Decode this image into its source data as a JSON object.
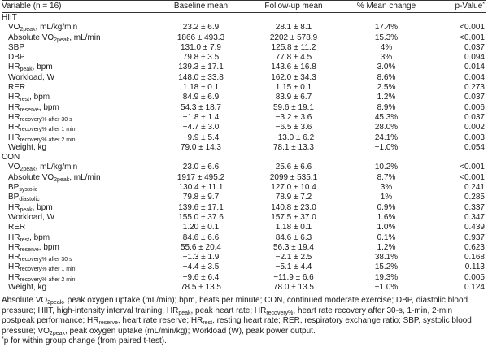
{
  "header": {
    "variable": "Variable (n = 16)",
    "baseline": "Baseline mean",
    "followup": "Follow-up mean",
    "change": "% Mean change",
    "pvalue": "p-Value",
    "pvalue_mark": "*"
  },
  "groups": [
    {
      "name": "HIIT",
      "rows": [
        {
          "label": "VO",
          "sub": "2peak",
          "suffix": ", mL/kg/min",
          "baseline": "23.2 ± 6.9",
          "followup": "28.1 ± 8.1",
          "change": "17.4%",
          "p": "<0.001"
        },
        {
          "label": "Absolute VO",
          "sub": "2peak",
          "suffix": ", mL/min",
          "baseline": "1866 ± 493.3",
          "followup": "2202 ± 578.9",
          "change": "15.3%",
          "p": "<0.001"
        },
        {
          "label": "SBP",
          "sub": "",
          "suffix": "",
          "baseline": "131.0 ± 7.9",
          "followup": "125.8 ± 11.2",
          "change": "4%",
          "p": "0.037"
        },
        {
          "label": "DBP",
          "sub": "",
          "suffix": "",
          "baseline": "79.8 ± 3.5",
          "followup": "77.8 ± 4.5",
          "change": "3%",
          "p": "0.094"
        },
        {
          "label": "HR",
          "sub": "peak",
          "suffix": ", bpm",
          "baseline": "139.3 ± 17.1",
          "followup": "143.6 ± 16.8",
          "change": "3.0%",
          "p": "0.014"
        },
        {
          "label": "Workload, W",
          "sub": "",
          "suffix": "",
          "baseline": "148.0 ± 33.8",
          "followup": "162.0 ± 34.3",
          "change": "8.6%",
          "p": "0.004"
        },
        {
          "label": "RER",
          "sub": "",
          "suffix": "",
          "baseline": "1.18 ± 0.1",
          "followup": "1.15 ± 0.1",
          "change": "2.5%",
          "p": "0.273"
        },
        {
          "label": "HR",
          "sub": "rest",
          "suffix": ", bpm",
          "baseline": "84.9 ± 6.9",
          "followup": "83.9 ± 6.7",
          "change": "1.2%",
          "p": "0.037"
        },
        {
          "label": "HR",
          "sub": "reserve",
          "suffix": ", bpm",
          "baseline": "54.3 ± 18.7",
          "followup": "59.6 ± 19.1",
          "change": "8.9%",
          "p": "0.006"
        },
        {
          "label": "HR",
          "sub": "recovery% after 30 s",
          "suffix": "",
          "baseline": "−1.8 ± 1.4",
          "followup": "−3.2 ± 3.6",
          "change": "45.3%",
          "p": "0.037"
        },
        {
          "label": "HR",
          "sub": "recovery% after 1 min",
          "suffix": "",
          "baseline": "−4.7 ± 3.0",
          "followup": "−6.5 ± 3.6",
          "change": "28.0%",
          "p": "0.002"
        },
        {
          "label": "HR",
          "sub": "recovery% after 2 min",
          "suffix": "",
          "baseline": "−9.9 ± 5.4",
          "followup": "−13.0 ± 6.2",
          "change": "24.1%",
          "p": "0.003"
        },
        {
          "label": "Weight, kg",
          "sub": "",
          "suffix": "",
          "baseline": "79.0 ± 14.3",
          "followup": "78.1 ± 13.3",
          "change": "−1.0%",
          "p": "0.054"
        }
      ]
    },
    {
      "name": "CON",
      "rows": [
        {
          "label": "VO",
          "sub": "2peak",
          "suffix": ", mL/kg/min",
          "baseline": "23.0 ± 6.6",
          "followup": "25.6 ± 6.6",
          "change": "10.2%",
          "p": "<0.001"
        },
        {
          "label": "Absolute VO",
          "sub": "2peak",
          "suffix": ", mL/min",
          "baseline": "1917 ± 495.2",
          "followup": "2099 ± 535.1",
          "change": "8.7%",
          "p": "<0.001"
        },
        {
          "label": "BP",
          "sub": "systolic",
          "suffix": "",
          "baseline": "130.4 ± 11.1",
          "followup": "127.0 ± 10.4",
          "change": "3%",
          "p": "0.241"
        },
        {
          "label": "BP",
          "sub": "diastolic",
          "suffix": "",
          "baseline": "79.8 ± 9.7",
          "followup": "78.9 ± 7.2",
          "change": "1%",
          "p": "0.285"
        },
        {
          "label": "HR",
          "sub": "peak",
          "suffix": ", bpm",
          "baseline": "139.6 ± 17.1",
          "followup": "140.8 ± 23.0",
          "change": "0.9%",
          "p": "0.337"
        },
        {
          "label": "Workload, W",
          "sub": "",
          "suffix": "",
          "baseline": "155.0 ± 37.6",
          "followup": "157.5 ± 37.0",
          "change": "1.6%",
          "p": "0.347"
        },
        {
          "label": "RER",
          "sub": "",
          "suffix": "",
          "baseline": "1.20 ± 0.1",
          "followup": "1.18 ± 0.1",
          "change": "1.0%",
          "p": "0.439"
        },
        {
          "label": "HR",
          "sub": "rest",
          "suffix": ", bpm",
          "baseline": "84.6 ± 6.6",
          "followup": "84.6 ± 6.3",
          "change": "0.1%",
          "p": "0.937"
        },
        {
          "label": "HR",
          "sub": "reserve",
          "suffix": ", bpm",
          "baseline": "55.6 ± 20.4",
          "followup": "56.3 ± 19.4",
          "change": "1.2%",
          "p": "0.623"
        },
        {
          "label": "HR",
          "sub": "recovery% after 30 s",
          "suffix": "",
          "baseline": "−1.3 ± 1.9",
          "followup": "−2.1 ± 2.5",
          "change": "38.1%",
          "p": "0.168"
        },
        {
          "label": "HR",
          "sub": "recovery% after 1 min",
          "suffix": "",
          "baseline": "−4.4 ± 3.5",
          "followup": "−5.1 ± 4.4",
          "change": "15.2%",
          "p": "0.113"
        },
        {
          "label": "HR",
          "sub": "recovery% after 2 min",
          "suffix": "",
          "baseline": "−9.6 ± 6.4",
          "followup": "−11.9 ± 6.6",
          "change": "19.3%",
          "p": "0.005"
        },
        {
          "label": "Weight, kg",
          "sub": "",
          "suffix": "",
          "baseline": "78.5 ± 13.5",
          "followup": "78.0 ± 13.5",
          "change": "−1.0%",
          "p": "0.124"
        }
      ]
    }
  ],
  "footnote": {
    "abbrev": [
      {
        "t": "Absolute VO"
      },
      {
        "s": "2peak"
      },
      {
        "t": ", peak oxygen uptake (mL/min); bpm, beats per minute; CON, continued moderate exercise; DBP, diastolic blood pressure; HIIT, high-intensity interval training; HR"
      },
      {
        "s": "peak"
      },
      {
        "t": ", peak heart rate; HR"
      },
      {
        "s": "recovery%"
      },
      {
        "t": ", heart rate recovery after 30-s, 1-min, 2-min postpeak performance; HR"
      },
      {
        "s": "reserve"
      },
      {
        "t": ", heart rate reserve; HR"
      },
      {
        "s": "rest"
      },
      {
        "t": ", resting heart rate; RER, respiratory exchange ratio; SBP, systolic blood pressure; VO"
      },
      {
        "s": "2peak"
      },
      {
        "t": ", peak oxygen uptake (mL/min/kg); Workload (W), peak power output."
      }
    ],
    "mark": "*",
    "note": "p for within group change (from paired t-test)."
  }
}
